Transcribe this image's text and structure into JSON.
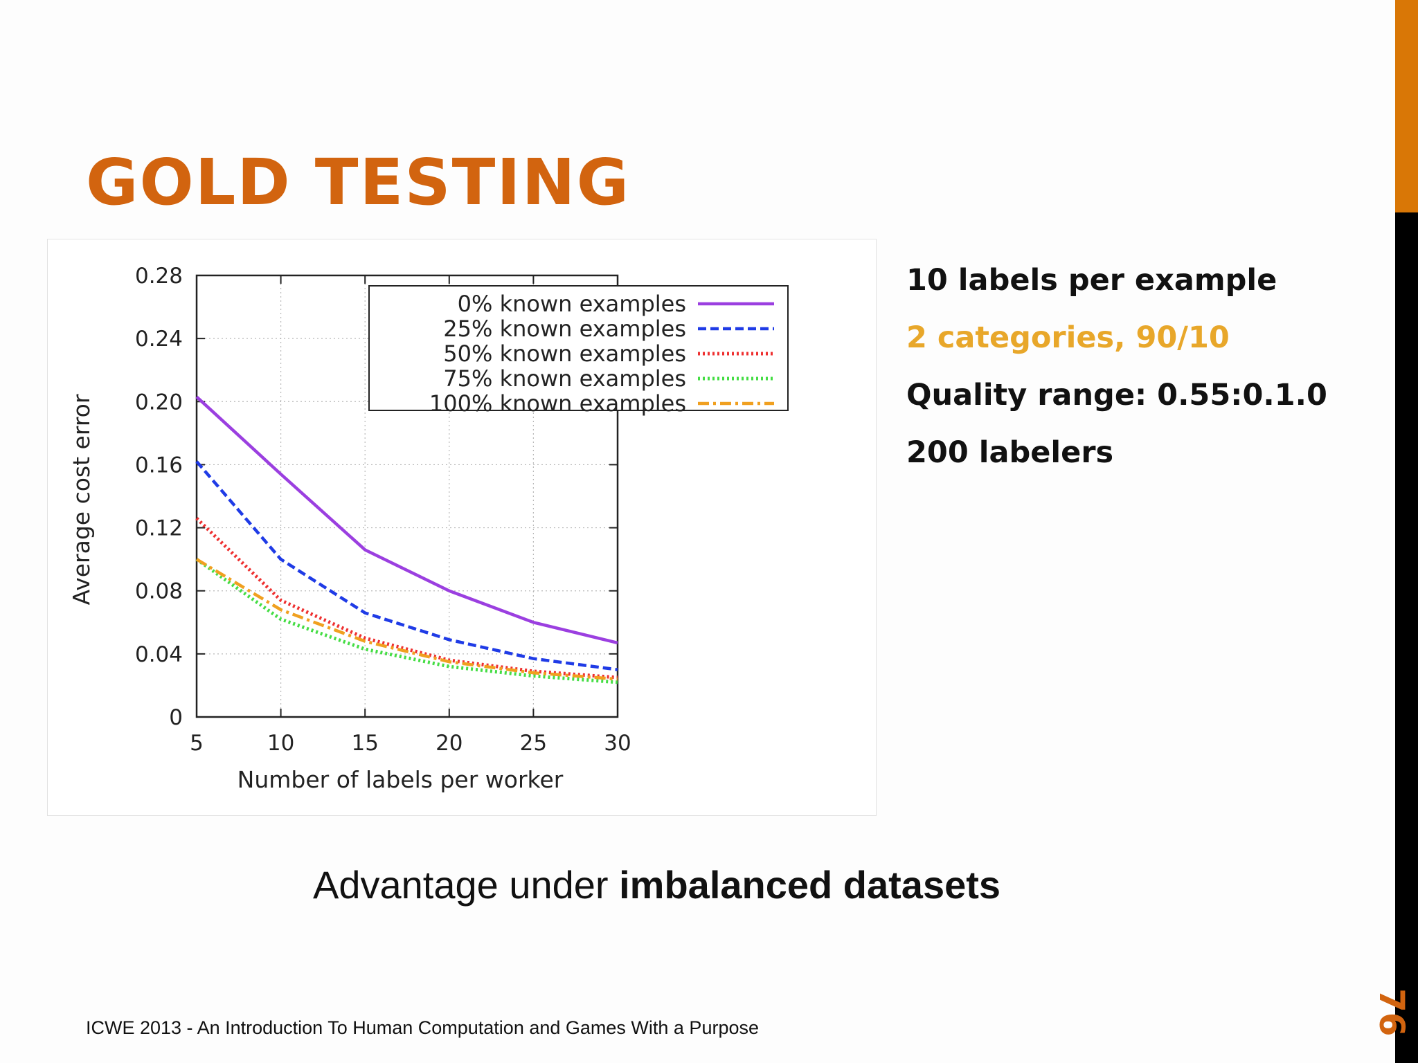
{
  "slide": {
    "title": "GOLD TESTING",
    "title_color": "#D2640F",
    "accent_color": "#D97706",
    "bar_dark_color": "#000000",
    "bullets": [
      {
        "text": "10 labels per example",
        "color": "#111111"
      },
      {
        "text": "2 categories, 90/10",
        "color": "#E8A72A"
      },
      {
        "text": "Quality range: 0.55:0.1.0",
        "color": "#111111"
      },
      {
        "text": "200 labelers",
        "color": "#111111"
      }
    ],
    "caption": {
      "plain": "Advantage under ",
      "bold": "imbalanced datasets"
    },
    "footer": "ICWE 2013 - An Introduction To Human Computation and Games With a Purpose",
    "page_number": "76",
    "page_number_color": "#D2640F"
  },
  "chart_data": {
    "type": "line",
    "title": "",
    "xlabel": "Number of labels per worker",
    "ylabel": "Average cost error",
    "xlim": [
      5,
      30
    ],
    "ylim": [
      0,
      0.28
    ],
    "x_ticks": [
      "5",
      "10",
      "15",
      "20",
      "25",
      "30"
    ],
    "y_ticks": [
      "0",
      "0.04",
      "0.08",
      "0.12",
      "0.16",
      "0.20",
      "0.24",
      "0.28"
    ],
    "grid": true,
    "legend_position": "top-right",
    "x": [
      5,
      10,
      15,
      20,
      25,
      30
    ],
    "series": [
      {
        "name": "0% known examples",
        "color": "#9B3FE0",
        "style": "solid",
        "values": [
          0.203,
          0.154,
          0.106,
          0.08,
          0.06,
          0.047
        ]
      },
      {
        "name": "25% known examples",
        "color": "#1F3BE6",
        "style": "dashed",
        "values": [
          0.162,
          0.1,
          0.066,
          0.049,
          0.037,
          0.03
        ]
      },
      {
        "name": "50% known examples",
        "color": "#EE3030",
        "style": "dotted",
        "values": [
          0.126,
          0.074,
          0.05,
          0.036,
          0.029,
          0.025
        ]
      },
      {
        "name": "75% known examples",
        "color": "#44DD44",
        "style": "dotted",
        "values": [
          0.1,
          0.062,
          0.043,
          0.032,
          0.026,
          0.022
        ]
      },
      {
        "name": "100% known examples",
        "color": "#F0A020",
        "style": "dashdot",
        "values": [
          0.1,
          0.068,
          0.048,
          0.035,
          0.028,
          0.024
        ]
      }
    ]
  }
}
